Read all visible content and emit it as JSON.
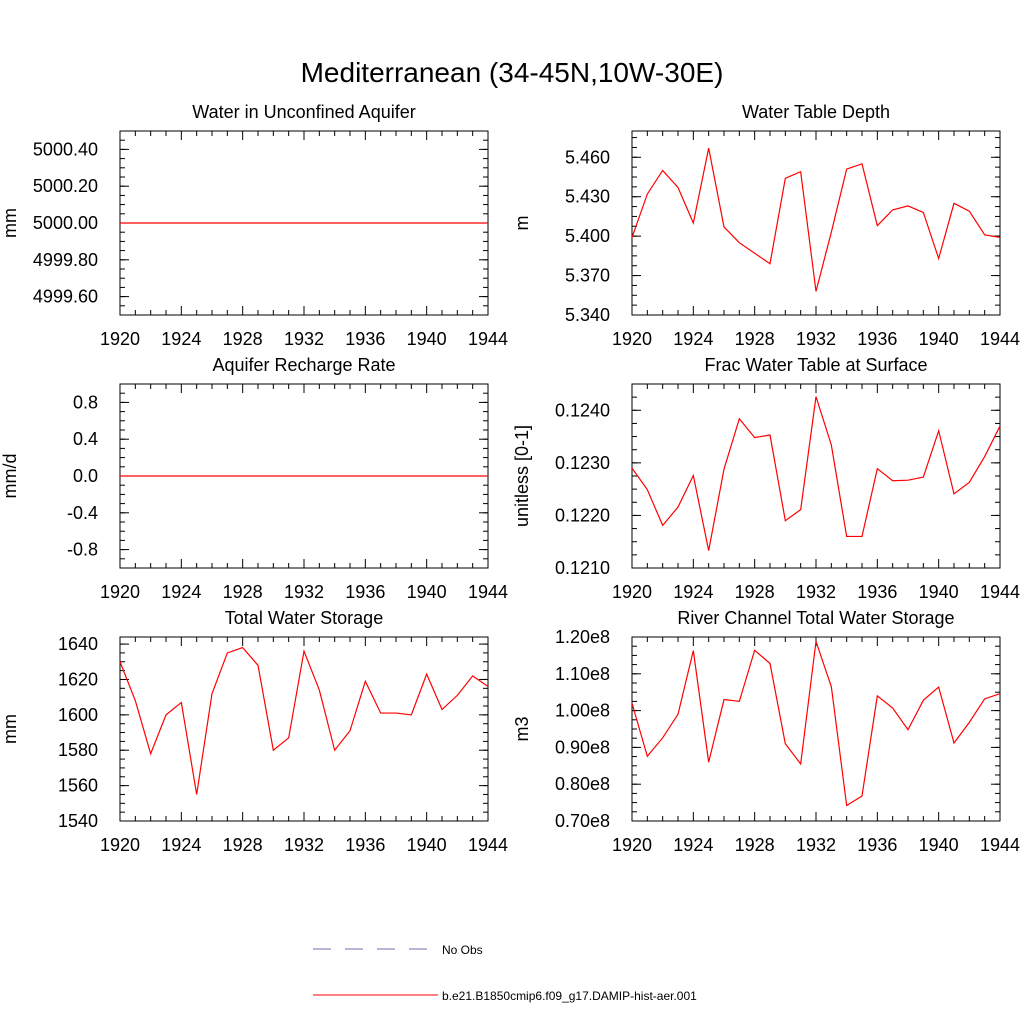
{
  "title": "Mediterranean (34-45N,10W-30E)",
  "line_color": "#ff0000",
  "obs_color": "#6b6bb0",
  "legend": {
    "obs_label": "No Obs",
    "model_label": "b.e21.B1850cmip6.f09_g17.DAMIP-hist-aer.001"
  },
  "chart_data": [
    {
      "type": "line",
      "title": "Water in Unconfined Aquifer",
      "ylabel": "mm",
      "xlim": [
        1920,
        1944
      ],
      "ylim": [
        4999.5,
        5000.5
      ],
      "x_ticks": [
        "1920",
        "1924",
        "1928",
        "1932",
        "1936",
        "1940",
        "1944"
      ],
      "y_ticks": [
        {
          "value": 4999.6,
          "label": "4999.60"
        },
        {
          "value": 4999.8,
          "label": "4999.80"
        },
        {
          "value": 5000.0,
          "label": "5000.00"
        },
        {
          "value": 5000.2,
          "label": "5000.20"
        },
        {
          "value": 5000.4,
          "label": "5000.40"
        }
      ],
      "x": [
        1920,
        1944
      ],
      "values": [
        5000.0,
        5000.0
      ]
    },
    {
      "type": "line",
      "title": "Water Table Depth",
      "ylabel": "m",
      "xlim": [
        1920,
        1944
      ],
      "ylim": [
        5.34,
        5.48
      ],
      "x_ticks": [
        "1920",
        "1924",
        "1928",
        "1932",
        "1936",
        "1940",
        "1944"
      ],
      "y_ticks": [
        {
          "value": 5.34,
          "label": "5.340"
        },
        {
          "value": 5.37,
          "label": "5.370"
        },
        {
          "value": 5.4,
          "label": "5.400"
        },
        {
          "value": 5.43,
          "label": "5.430"
        },
        {
          "value": 5.46,
          "label": "5.460"
        }
      ],
      "x": [
        1920,
        1921,
        1922,
        1923,
        1924,
        1925,
        1926,
        1927,
        1928,
        1929,
        1930,
        1931,
        1932,
        1933,
        1934,
        1935,
        1936,
        1937,
        1938,
        1939,
        1940,
        1941,
        1942,
        1943,
        1944
      ],
      "values": [
        5.399,
        5.432,
        5.45,
        5.437,
        5.41,
        5.467,
        5.407,
        5.395,
        5.387,
        5.379,
        5.444,
        5.449,
        5.358,
        5.403,
        5.451,
        5.455,
        5.408,
        5.42,
        5.423,
        5.418,
        5.383,
        5.425,
        5.419,
        5.401,
        5.399
      ]
    },
    {
      "type": "line",
      "title": "Aquifer Recharge Rate",
      "ylabel": "mm/d",
      "xlim": [
        1920,
        1944
      ],
      "ylim": [
        -1.0,
        1.0
      ],
      "x_ticks": [
        "1920",
        "1924",
        "1928",
        "1932",
        "1936",
        "1940",
        "1944"
      ],
      "y_ticks": [
        {
          "value": -0.8,
          "label": "-0.8"
        },
        {
          "value": -0.4,
          "label": "-0.4"
        },
        {
          "value": 0.0,
          "label": "0.0"
        },
        {
          "value": 0.4,
          "label": "0.4"
        },
        {
          "value": 0.8,
          "label": "0.8"
        }
      ],
      "x": [
        1920,
        1944
      ],
      "values": [
        0.0,
        0.0
      ]
    },
    {
      "type": "line",
      "title": "Frac Water Table at Surface",
      "ylabel": "unitless [0-1]",
      "xlim": [
        1920,
        1944
      ],
      "ylim": [
        0.121,
        0.1245
      ],
      "x_ticks": [
        "1920",
        "1924",
        "1928",
        "1932",
        "1936",
        "1940",
        "1944"
      ],
      "y_ticks": [
        {
          "value": 0.121,
          "label": "0.1210"
        },
        {
          "value": 0.122,
          "label": "0.1220"
        },
        {
          "value": 0.123,
          "label": "0.1230"
        },
        {
          "value": 0.124,
          "label": "0.1240"
        }
      ],
      "x": [
        1920,
        1921,
        1922,
        1923,
        1924,
        1925,
        1926,
        1927,
        1928,
        1929,
        1930,
        1931,
        1932,
        1933,
        1934,
        1935,
        1936,
        1937,
        1938,
        1939,
        1940,
        1941,
        1942,
        1943,
        1944
      ],
      "values": [
        0.1229,
        0.12249,
        0.12181,
        0.12216,
        0.12276,
        0.12133,
        0.12288,
        0.12384,
        0.12348,
        0.12353,
        0.1219,
        0.12211,
        0.12426,
        0.12334,
        0.1216,
        0.1216,
        0.12289,
        0.12266,
        0.12267,
        0.12273,
        0.12361,
        0.12241,
        0.12263,
        0.12312,
        0.1237
      ]
    },
    {
      "type": "line",
      "title": "Total Water Storage",
      "ylabel": "mm",
      "xlim": [
        1920,
        1944
      ],
      "ylim": [
        1540,
        1644
      ],
      "x_ticks": [
        "1920",
        "1924",
        "1928",
        "1932",
        "1936",
        "1940",
        "1944"
      ],
      "y_ticks": [
        {
          "value": 1540,
          "label": "1540"
        },
        {
          "value": 1560,
          "label": "1560"
        },
        {
          "value": 1580,
          "label": "1580"
        },
        {
          "value": 1600,
          "label": "1600"
        },
        {
          "value": 1620,
          "label": "1620"
        },
        {
          "value": 1640,
          "label": "1640"
        }
      ],
      "x": [
        1920,
        1921,
        1922,
        1923,
        1924,
        1925,
        1926,
        1927,
        1928,
        1929,
        1930,
        1931,
        1932,
        1933,
        1934,
        1935,
        1936,
        1937,
        1938,
        1939,
        1940,
        1941,
        1942,
        1943,
        1944
      ],
      "values": [
        1630,
        1608,
        1578,
        1600,
        1607,
        1555,
        1612,
        1635,
        1638,
        1628,
        1580,
        1587,
        1636,
        1614,
        1580,
        1591,
        1619,
        1601,
        1601,
        1600,
        1623,
        1603,
        1611,
        1622,
        1616
      ]
    },
    {
      "type": "line",
      "title": "River Channel Total Water Storage",
      "ylabel": "m3",
      "xlim": [
        1920,
        1944
      ],
      "ylim": [
        70000000.0,
        120000000.0
      ],
      "x_ticks": [
        "1920",
        "1924",
        "1928",
        "1932",
        "1936",
        "1940",
        "1944"
      ],
      "y_ticks": [
        {
          "value": 70000000.0,
          "label": "0.70e8"
        },
        {
          "value": 80000000.0,
          "label": "0.80e8"
        },
        {
          "value": 90000000.0,
          "label": "0.90e8"
        },
        {
          "value": 100000000.0,
          "label": "1.00e8"
        },
        {
          "value": 110000000.0,
          "label": "1.10e8"
        },
        {
          "value": 120000000.0,
          "label": "1.20e8"
        }
      ],
      "x": [
        1920,
        1921,
        1922,
        1923,
        1924,
        1925,
        1926,
        1927,
        1928,
        1929,
        1930,
        1931,
        1932,
        1933,
        1934,
        1935,
        1936,
        1937,
        1938,
        1939,
        1940,
        1941,
        1942,
        1943,
        1944
      ],
      "values": [
        102000000.0,
        87600000.0,
        92600000.0,
        99000000.0,
        116300000.0,
        86000000.0,
        103000000.0,
        102500000.0,
        116400000.0,
        112800000.0,
        91000000.0,
        85500000.0,
        118800000.0,
        106500000.0,
        74200000.0,
        76800000.0,
        104000000.0,
        100700000.0,
        94800000.0,
        102800000.0,
        106400000.0,
        91200000.0,
        96800000.0,
        103200000.0,
        104600000.0
      ]
    }
  ]
}
